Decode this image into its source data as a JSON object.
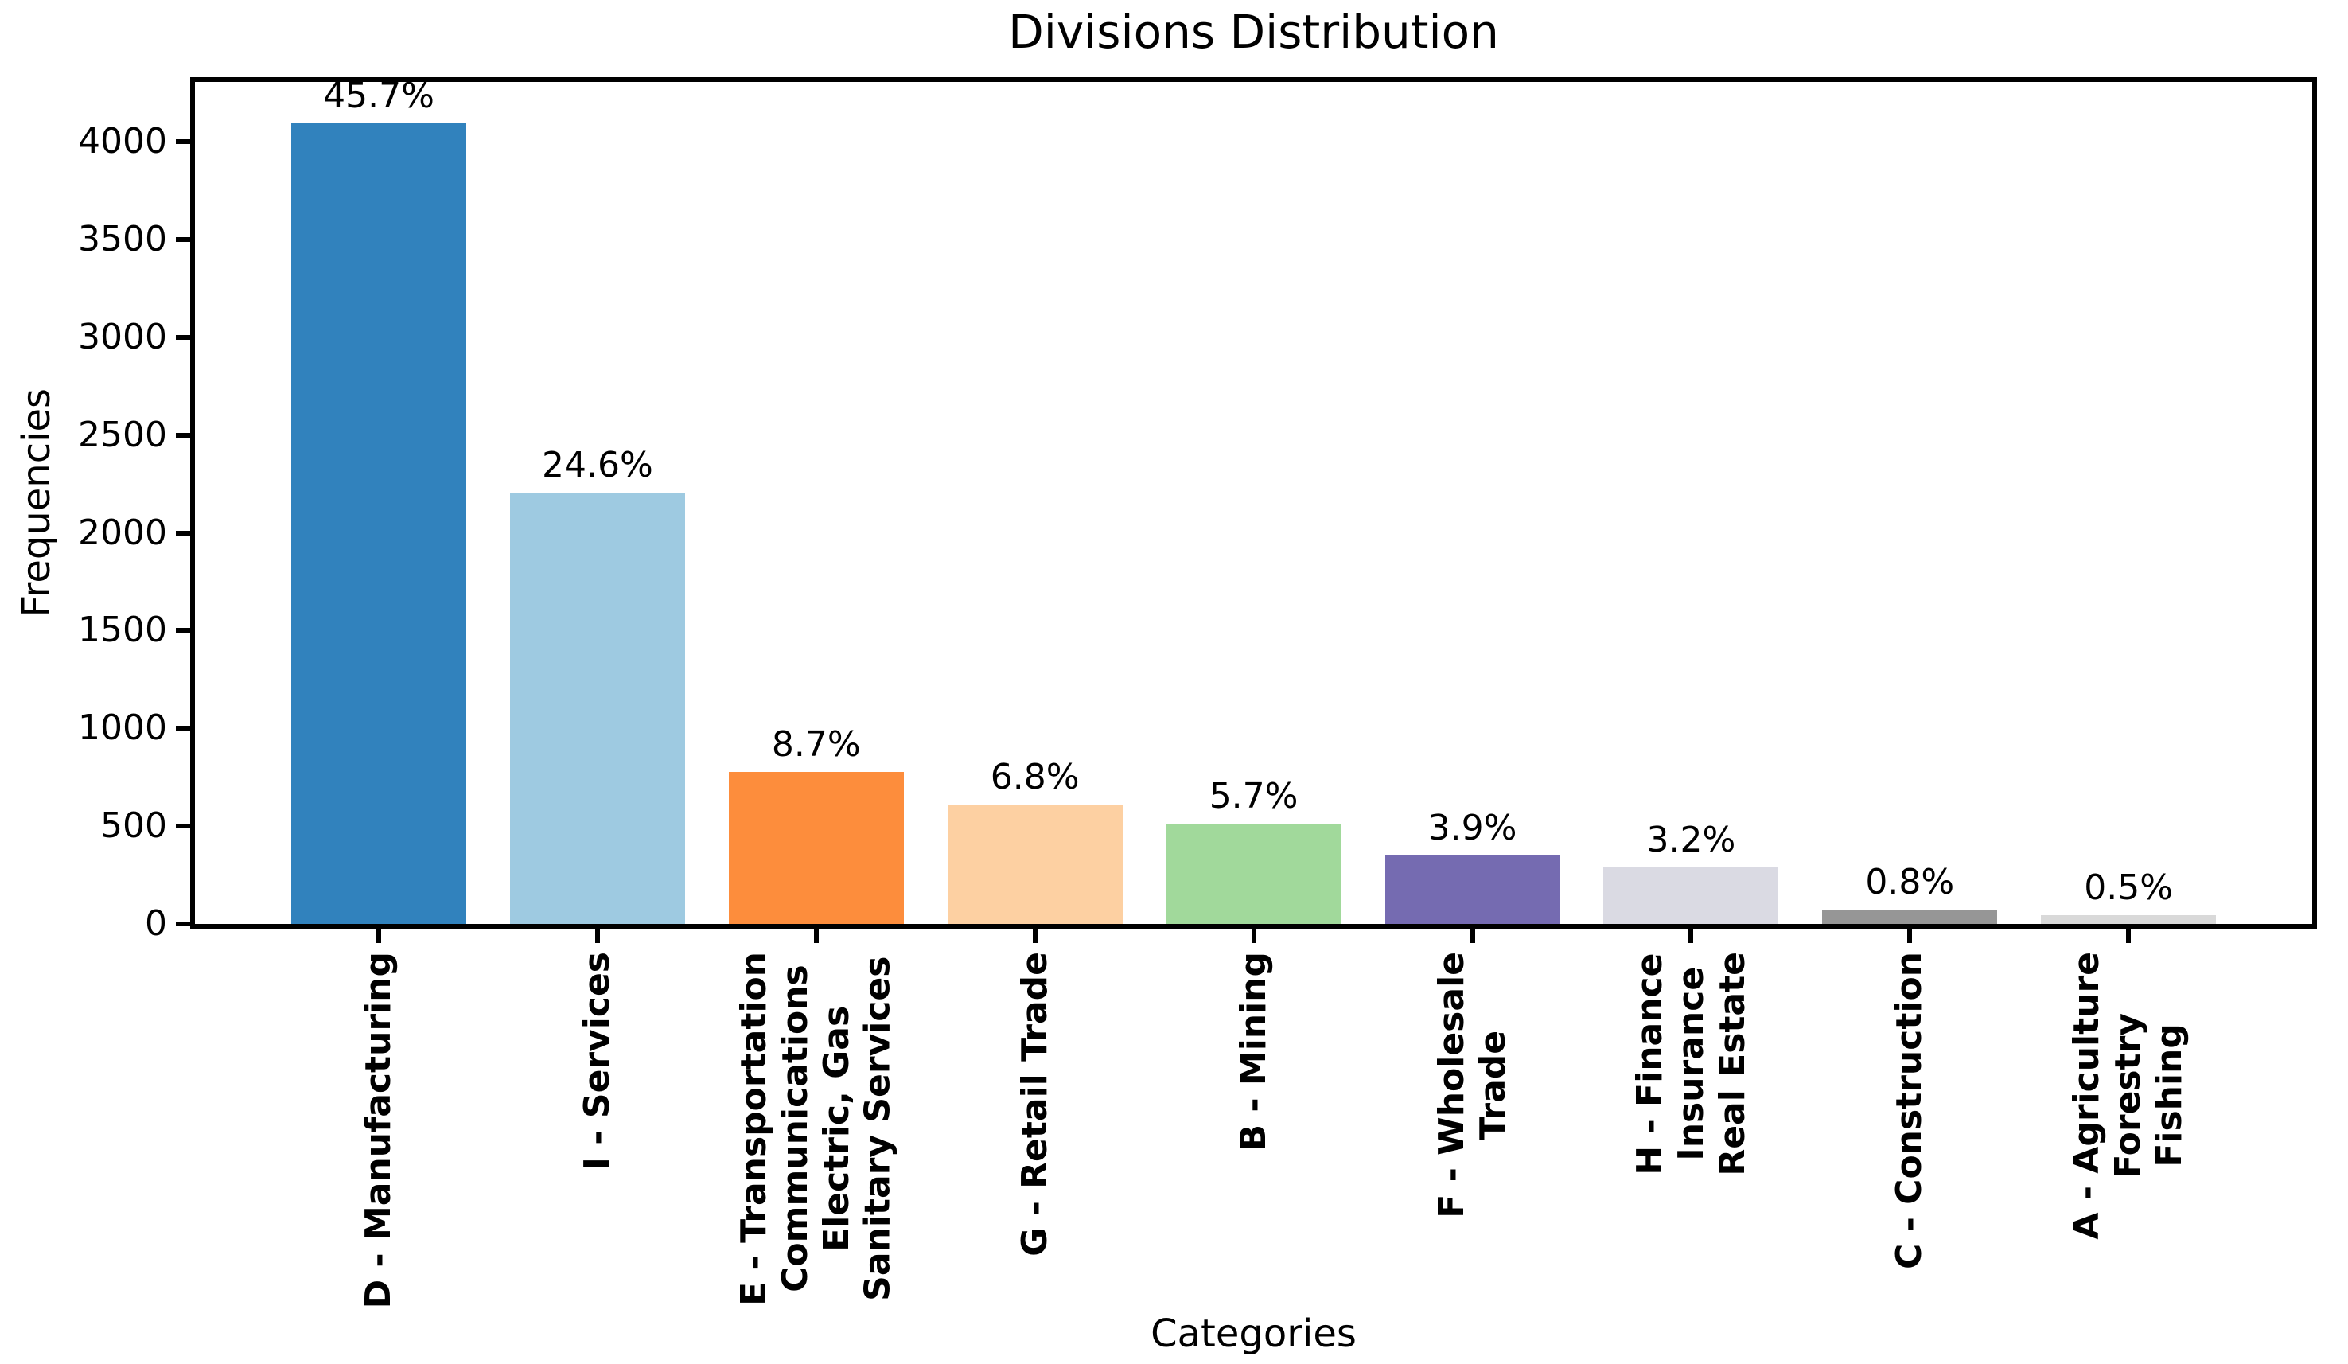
{
  "chart_data": {
    "type": "bar",
    "title": "Divisions Distribution",
    "xlabel": "Categories",
    "ylabel": "Frequencies",
    "ylim": [
      0,
      4300
    ],
    "yticks": [
      0,
      500,
      1000,
      1500,
      2000,
      2500,
      3000,
      3500,
      4000
    ],
    "grid": false,
    "legend": "none",
    "categories": [
      "D - Manufacturing",
      "I - Services",
      "E - Transportation\nCommunications\nElectric, Gas\nSanitary Services",
      "G - Retail Trade",
      "B - Mining",
      "F - Wholesale\nTrade",
      "H - Finance\nInsurance\nReal Estate",
      "C - Construction",
      "A - Agriculture\nForestry\nFishing"
    ],
    "values": [
      4094,
      2204,
      779,
      609,
      511,
      349,
      287,
      72,
      45
    ],
    "percent_labels": [
      "45.7%",
      "24.6%",
      "8.7%",
      "6.8%",
      "5.7%",
      "3.9%",
      "3.2%",
      "0.8%",
      "0.5%"
    ],
    "bar_colors": [
      "#3182bd",
      "#9ecae1",
      "#fd8d3c",
      "#fdd0a2",
      "#a1d99b",
      "#756bb1",
      "#dadae3",
      "#969696",
      "#d9d9d9"
    ],
    "axis_color": "#000000",
    "background_color": "#ffffff"
  }
}
